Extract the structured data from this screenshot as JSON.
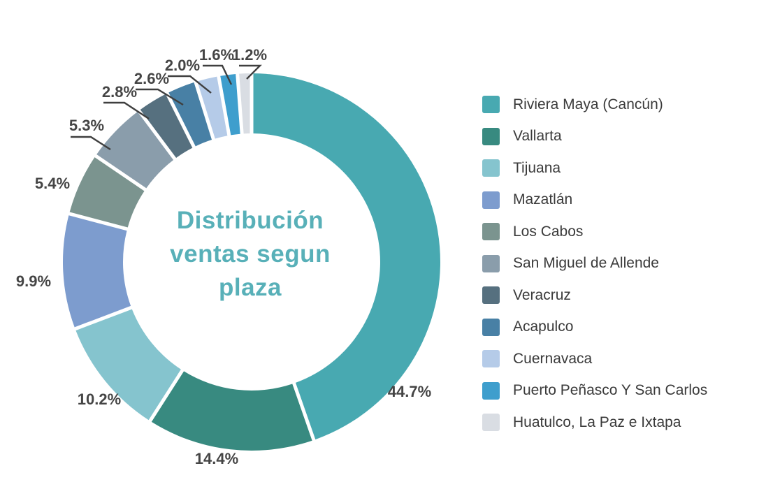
{
  "page": {
    "background": "#ffffff"
  },
  "chart_data": {
    "type": "pie",
    "variant": "donut",
    "title": "Distribución ventas segun plaza",
    "title_lines": [
      "Distribución",
      "ventas segun",
      "plaza"
    ],
    "title_color": "#58b0b8",
    "label_color": "#454545",
    "legend_position": "right",
    "grid": false,
    "start_angle_deg": 0,
    "direction": "clockwise",
    "series": [
      {
        "label": "Riviera Maya (Cancún)",
        "value": 44.7,
        "display": "44.7%",
        "color": "#48a9b1"
      },
      {
        "label": "Vallarta",
        "value": 14.4,
        "display": "14.4%",
        "color": "#388a80"
      },
      {
        "label": "Tijuana",
        "value": 10.2,
        "display": "10.2%",
        "color": "#85c4ce"
      },
      {
        "label": "Mazatlán",
        "value": 9.9,
        "display": "9.9%",
        "color": "#7d9cce"
      },
      {
        "label": "Los Cabos",
        "value": 5.4,
        "display": "5.4%",
        "color": "#7b948f"
      },
      {
        "label": "San Miguel de Allende",
        "value": 5.3,
        "display": "5.3%",
        "color": "#8a9dab"
      },
      {
        "label": "Veracruz",
        "value": 2.8,
        "display": "2.8%",
        "color": "#56707f"
      },
      {
        "label": "Acapulco",
        "value": 2.6,
        "display": "2.6%",
        "color": "#4880a5"
      },
      {
        "label": "Cuernavaca",
        "value": 2.0,
        "display": "2.0%",
        "color": "#b5cbe8"
      },
      {
        "label": "Puerto Peñasco Y San Carlos",
        "value": 1.6,
        "display": "1.6%",
        "color": "#3e9ecd"
      },
      {
        "label": "Huatulco, La Paz e Ixtapa",
        "value": 1.2,
        "display": "1.2%",
        "color": "#d9dde3"
      }
    ]
  }
}
